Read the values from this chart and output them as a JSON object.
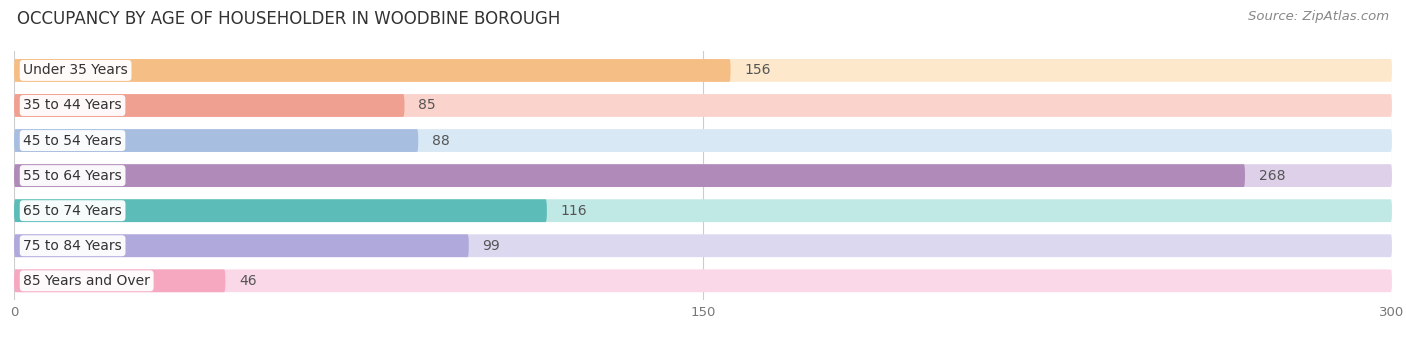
{
  "title": "OCCUPANCY BY AGE OF HOUSEHOLDER IN WOODBINE BOROUGH",
  "source": "Source: ZipAtlas.com",
  "categories": [
    "Under 35 Years",
    "35 to 44 Years",
    "45 to 54 Years",
    "55 to 64 Years",
    "65 to 74 Years",
    "75 to 84 Years",
    "85 Years and Over"
  ],
  "values": [
    156,
    85,
    88,
    268,
    116,
    99,
    46
  ],
  "bar_colors": [
    "#F5BE85",
    "#F0A090",
    "#A8BEE0",
    "#B08AB8",
    "#5BBCB8",
    "#B0AADC",
    "#F5A8C0"
  ],
  "bar_bg_colors": [
    "#FDE8CC",
    "#FAD4CC",
    "#D8E8F5",
    "#DDD0E8",
    "#C0E8E5",
    "#DCD8F0",
    "#FBD8E8"
  ],
  "xlim": [
    0,
    300
  ],
  "xticks": [
    0,
    150,
    300
  ],
  "background_color": "#ffffff",
  "title_fontsize": 12,
  "source_fontsize": 9.5,
  "label_fontsize": 10,
  "value_fontsize": 10
}
